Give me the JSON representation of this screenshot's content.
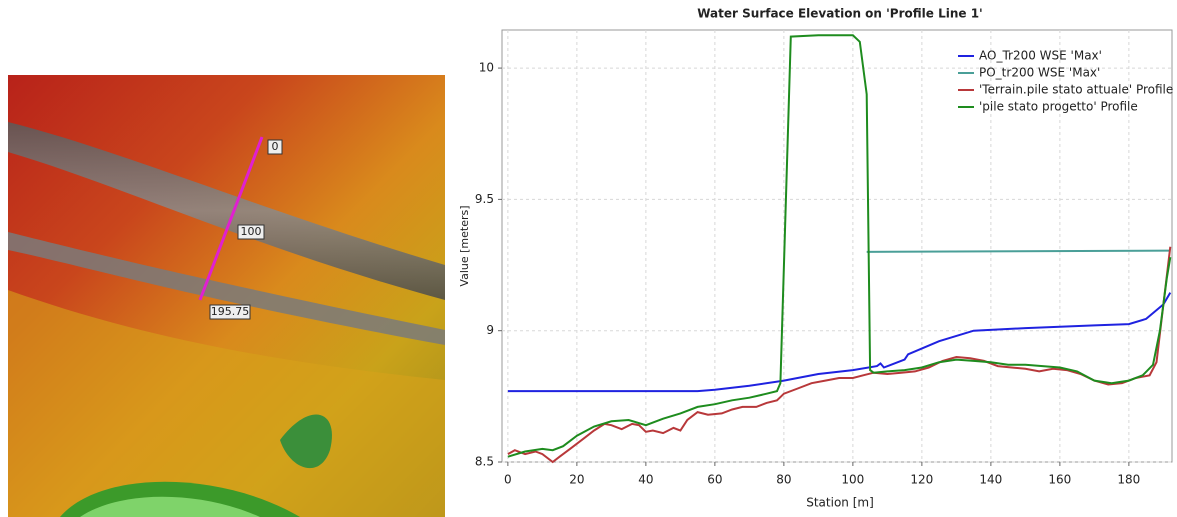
{
  "map": {
    "labels": [
      "0",
      "100",
      "195.75"
    ]
  },
  "chart_data": {
    "type": "line",
    "title": "Water Surface Elevation on 'Profile Line 1'",
    "x_label": "Station [m]",
    "y_label": "Value [meters]",
    "xlim": [
      -1.7,
      192.5
    ],
    "xticks": [
      0,
      20,
      40,
      60,
      80,
      100,
      120,
      140,
      160,
      180
    ],
    "ylim": [
      8.5,
      10.145
    ],
    "yticks": [
      8.5,
      9,
      9.5,
      10
    ],
    "grid": true,
    "legend": "top-right",
    "series": [
      {
        "name": "AO_Tr200 WSE 'Max'",
        "color": "#1f22e0",
        "x": [
          0,
          55,
          60,
          70,
          80,
          90,
          100,
          107,
          108,
          109,
          115,
          116,
          125,
          135,
          150,
          170,
          180,
          185,
          190,
          192
        ],
        "values": [
          8.77,
          8.77,
          8.775,
          8.79,
          8.81,
          8.835,
          8.85,
          8.865,
          8.875,
          8.86,
          8.89,
          8.91,
          8.96,
          9.0,
          9.01,
          9.02,
          9.025,
          9.045,
          9.1,
          9.145
        ]
      },
      {
        "name": "PO_tr200 WSE 'Max'",
        "color": "#4a9f98",
        "x": [
          104,
          192
        ],
        "values": [
          9.3,
          9.305
        ]
      },
      {
        "name": "'Terrain.pile stato attuale' Profile",
        "color": "#b8383a",
        "x": [
          0,
          2,
          5,
          8,
          10,
          13,
          15,
          18,
          22,
          25,
          28,
          30,
          33,
          36,
          38,
          40,
          42,
          45,
          48,
          50,
          52,
          55,
          58,
          62,
          65,
          68,
          72,
          75,
          78,
          80,
          84,
          88,
          92,
          96,
          100,
          103,
          106,
          110,
          114,
          118,
          122,
          126,
          130,
          134,
          138,
          142,
          146,
          150,
          154,
          158,
          162,
          166,
          170,
          174,
          178,
          182,
          186,
          188,
          190,
          192
        ],
        "values": [
          8.53,
          8.545,
          8.53,
          8.54,
          8.53,
          8.5,
          8.52,
          8.55,
          8.59,
          8.62,
          8.645,
          8.64,
          8.625,
          8.645,
          8.64,
          8.615,
          8.62,
          8.61,
          8.63,
          8.62,
          8.66,
          8.69,
          8.68,
          8.685,
          8.7,
          8.71,
          8.71,
          8.725,
          8.735,
          8.76,
          8.78,
          8.8,
          8.81,
          8.82,
          8.82,
          8.83,
          8.84,
          8.835,
          8.84,
          8.845,
          8.86,
          8.885,
          8.9,
          8.895,
          8.885,
          8.865,
          8.86,
          8.855,
          8.845,
          8.855,
          8.85,
          8.835,
          8.81,
          8.795,
          8.8,
          8.82,
          8.83,
          8.88,
          9.1,
          9.32
        ]
      },
      {
        "name": "'pile stato progetto' Profile",
        "color": "#1e8c1e",
        "x": [
          0,
          5,
          10,
          13,
          16,
          20,
          25,
          30,
          35,
          40,
          45,
          50,
          55,
          60,
          65,
          70,
          75,
          78,
          79,
          82,
          90,
          100,
          102,
          104,
          105,
          106,
          110,
          115,
          120,
          125,
          130,
          135,
          140,
          145,
          150,
          155,
          160,
          165,
          170,
          175,
          180,
          184,
          187,
          189,
          191,
          192
        ],
        "values": [
          8.52,
          8.54,
          8.55,
          8.545,
          8.56,
          8.6,
          8.635,
          8.655,
          8.66,
          8.64,
          8.665,
          8.685,
          8.71,
          8.72,
          8.735,
          8.745,
          8.76,
          8.77,
          8.8,
          10.12,
          10.125,
          10.125,
          10.1,
          9.9,
          8.85,
          8.84,
          8.845,
          8.85,
          8.86,
          8.88,
          8.89,
          8.885,
          8.88,
          8.87,
          8.87,
          8.865,
          8.86,
          8.845,
          8.81,
          8.8,
          8.81,
          8.83,
          8.87,
          9.0,
          9.2,
          9.28
        ]
      }
    ]
  }
}
